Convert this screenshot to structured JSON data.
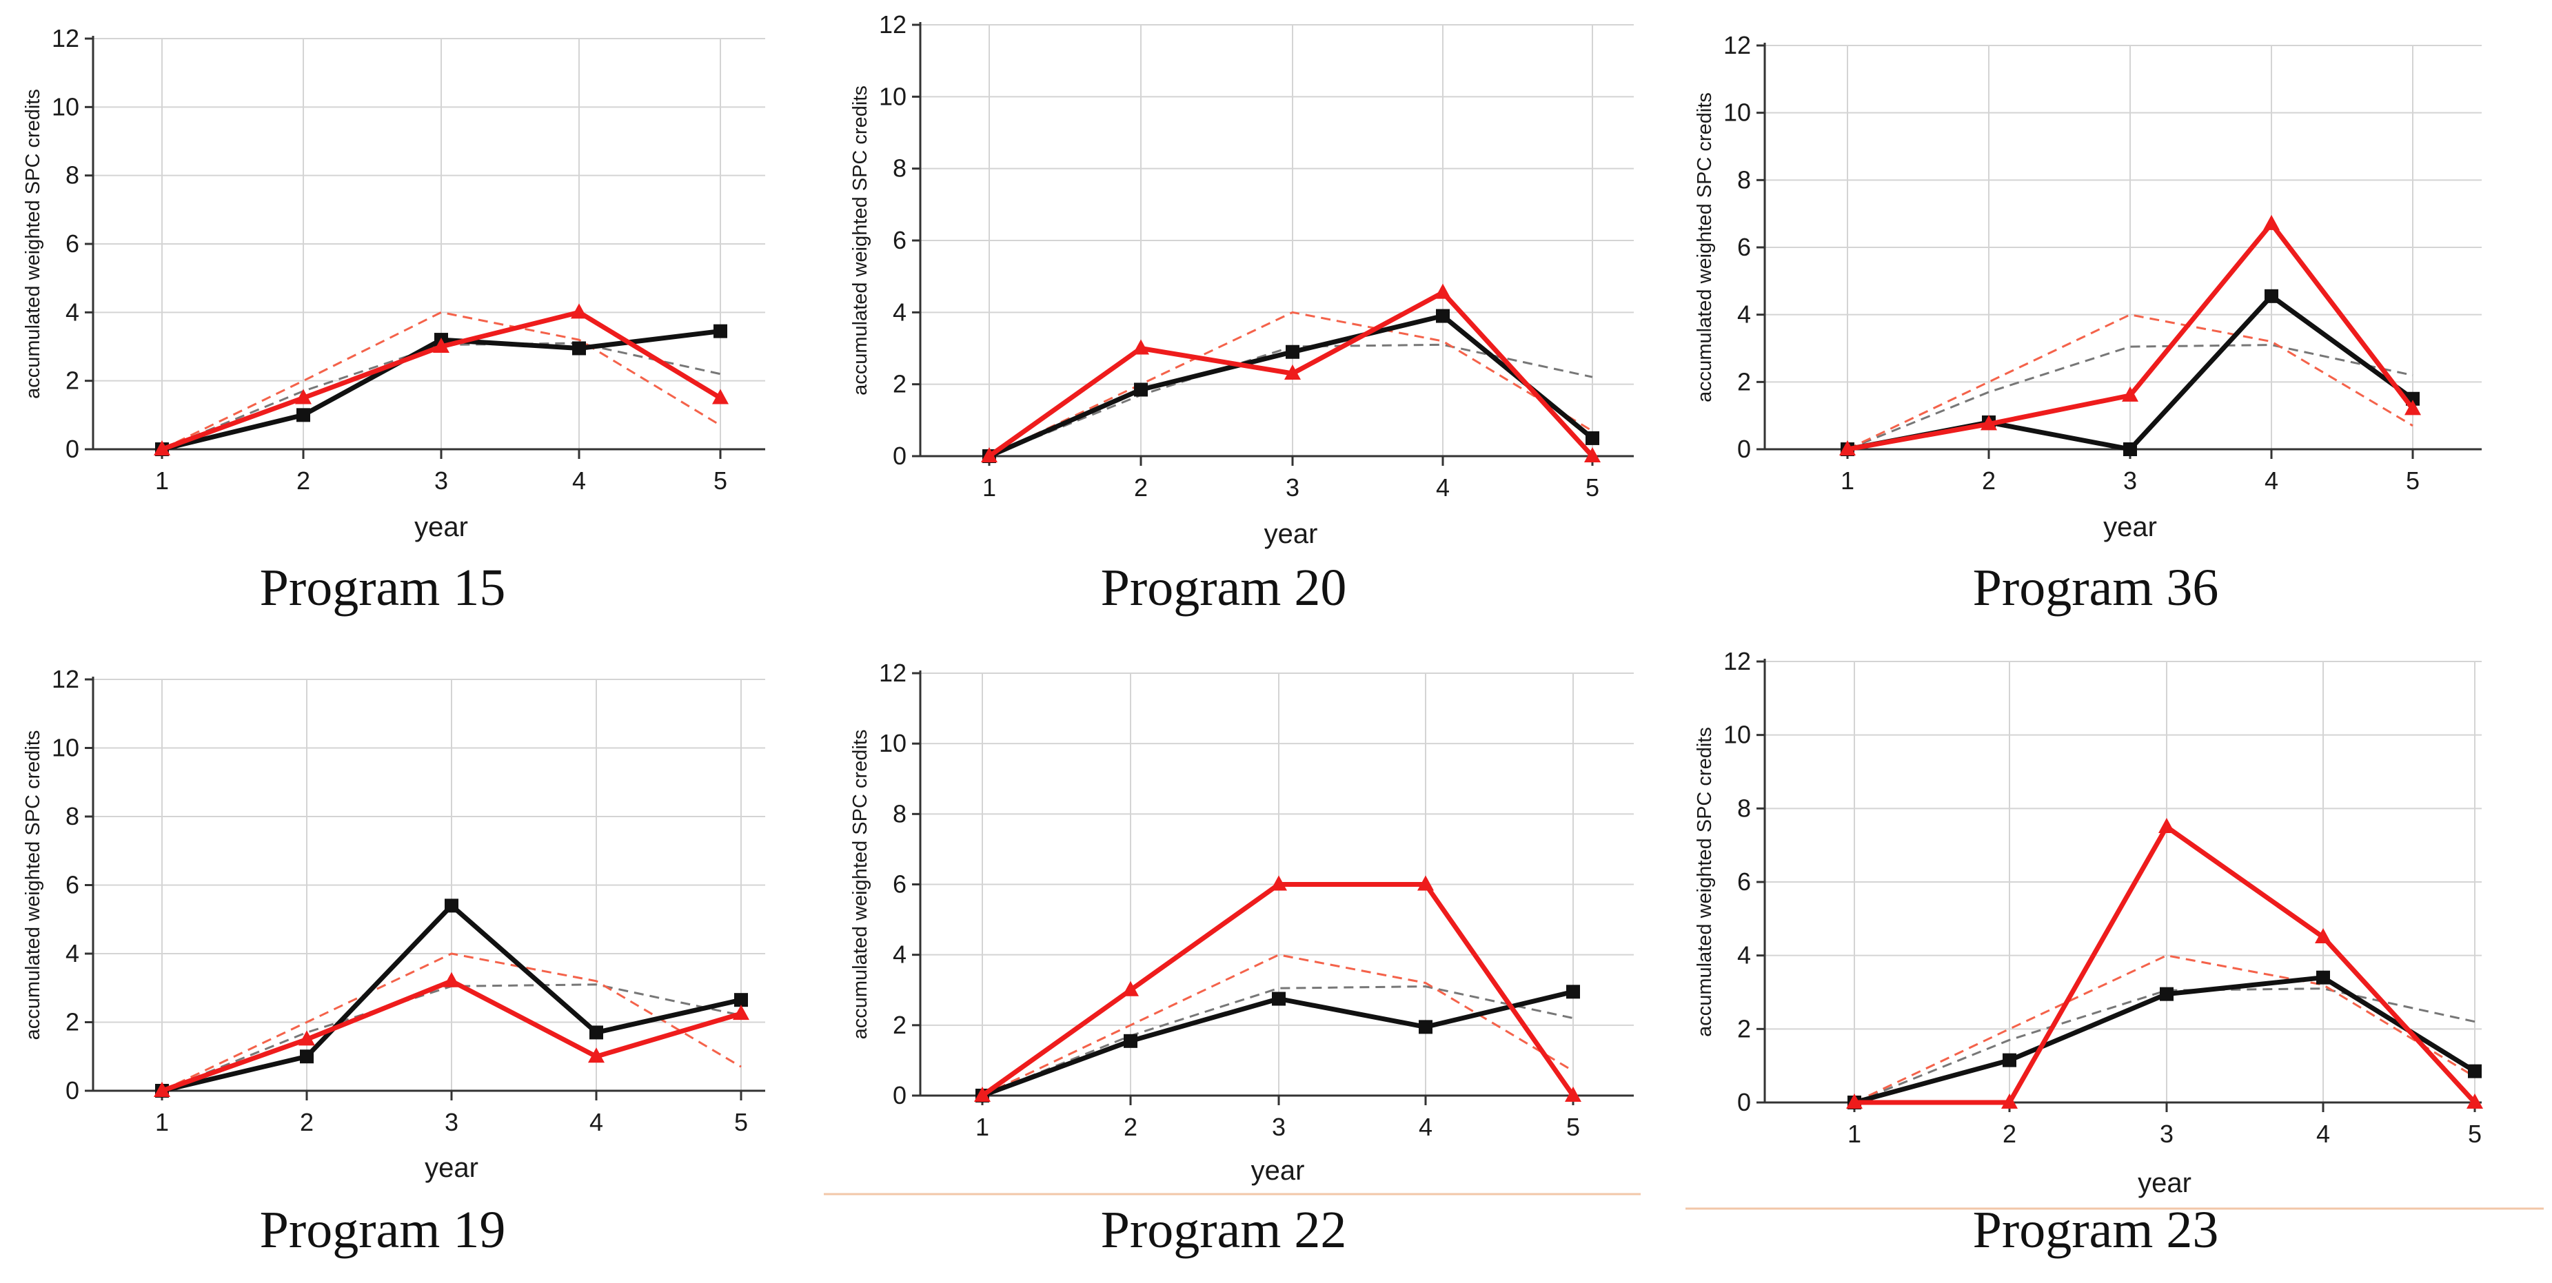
{
  "colors": {
    "series_black": "#111111",
    "series_red": "#ee1c1c",
    "ref_gray": "#777777",
    "ref_red": "#f4624a",
    "divider": "#f2c7a8"
  },
  "chart_data": [
    {
      "type": "line",
      "title": "Program 15",
      "xlabel": "year",
      "ylabel": "accumulated weighted SPC credits",
      "x": [
        1,
        2,
        3,
        4,
        5
      ],
      "ylim": [
        0,
        12
      ],
      "yticks": [
        0,
        2,
        4,
        6,
        8,
        10,
        12
      ],
      "series": [
        {
          "name": "reference-gray-dashed",
          "style": "dashed",
          "color": "#777777",
          "values": [
            0,
            1.7,
            3.05,
            3.1,
            2.2
          ]
        },
        {
          "name": "reference-red-dashed",
          "style": "dashed",
          "color": "#f4624a",
          "values": [
            0,
            2.0,
            4.0,
            3.2,
            0.7
          ]
        },
        {
          "name": "black-squares",
          "style": "solid",
          "marker": "square",
          "color": "#111111",
          "values": [
            0,
            1.0,
            3.2,
            2.95,
            3.45
          ]
        },
        {
          "name": "red-triangles",
          "style": "solid",
          "marker": "triangle",
          "color": "#ee1c1c",
          "values": [
            0,
            1.5,
            3.0,
            4.0,
            1.5
          ]
        }
      ]
    },
    {
      "type": "line",
      "title": "Program 20",
      "xlabel": "year",
      "ylabel": "accumulated weighted SPC credits",
      "x": [
        1,
        2,
        3,
        4,
        5
      ],
      "ylim": [
        0,
        12
      ],
      "yticks": [
        0,
        2,
        4,
        6,
        8,
        10,
        12
      ],
      "series": [
        {
          "name": "reference-gray-dashed",
          "style": "dashed",
          "color": "#777777",
          "values": [
            0,
            1.7,
            3.05,
            3.1,
            2.2
          ]
        },
        {
          "name": "reference-red-dashed",
          "style": "dashed",
          "color": "#f4624a",
          "values": [
            0,
            2.0,
            4.0,
            3.2,
            0.7
          ]
        },
        {
          "name": "black-squares",
          "style": "solid",
          "marker": "square",
          "color": "#111111",
          "values": [
            0,
            1.85,
            2.9,
            3.9,
            0.5
          ]
        },
        {
          "name": "red-triangles",
          "style": "solid",
          "marker": "triangle",
          "color": "#ee1c1c",
          "values": [
            0,
            3.0,
            2.3,
            4.55,
            0
          ]
        }
      ]
    },
    {
      "type": "line",
      "title": "Program 36",
      "xlabel": "year",
      "ylabel": "accumulated weighted SPC credits",
      "x": [
        1,
        2,
        3,
        4,
        5
      ],
      "ylim": [
        0,
        12
      ],
      "yticks": [
        0,
        2,
        4,
        6,
        8,
        10,
        12
      ],
      "series": [
        {
          "name": "reference-gray-dashed",
          "style": "dashed",
          "color": "#777777",
          "values": [
            0,
            1.7,
            3.05,
            3.1,
            2.2
          ]
        },
        {
          "name": "reference-red-dashed",
          "style": "dashed",
          "color": "#f4624a",
          "values": [
            0,
            2.0,
            4.0,
            3.2,
            0.7
          ]
        },
        {
          "name": "black-squares",
          "style": "solid",
          "marker": "square",
          "color": "#111111",
          "values": [
            0,
            0.8,
            0,
            4.55,
            1.5
          ]
        },
        {
          "name": "red-triangles",
          "style": "solid",
          "marker": "triangle",
          "color": "#ee1c1c",
          "values": [
            0,
            0.75,
            1.6,
            6.7,
            1.2
          ]
        }
      ]
    },
    {
      "type": "line",
      "title": "Program 19",
      "xlabel": "year",
      "ylabel": "accumulated weighted SPC credits",
      "x": [
        1,
        2,
        3,
        4,
        5
      ],
      "ylim": [
        0,
        12
      ],
      "yticks": [
        0,
        2,
        4,
        6,
        8,
        10,
        12
      ],
      "series": [
        {
          "name": "reference-gray-dashed",
          "style": "dashed",
          "color": "#777777",
          "values": [
            0,
            1.7,
            3.05,
            3.1,
            2.2
          ]
        },
        {
          "name": "reference-red-dashed",
          "style": "dashed",
          "color": "#f4624a",
          "values": [
            0,
            2.0,
            4.0,
            3.2,
            0.7
          ]
        },
        {
          "name": "black-squares",
          "style": "solid",
          "marker": "square",
          "color": "#111111",
          "values": [
            0,
            1.0,
            5.4,
            1.7,
            2.65
          ]
        },
        {
          "name": "red-triangles",
          "style": "solid",
          "marker": "triangle",
          "color": "#ee1c1c",
          "values": [
            0,
            1.5,
            3.2,
            1.0,
            2.25
          ]
        }
      ]
    },
    {
      "type": "line",
      "title": "Program 22",
      "xlabel": "year",
      "ylabel": "accumulated weighted SPC credits",
      "x": [
        1,
        2,
        3,
        4,
        5
      ],
      "ylim": [
        0,
        12
      ],
      "yticks": [
        0,
        2,
        4,
        6,
        8,
        10,
        12
      ],
      "series": [
        {
          "name": "reference-gray-dashed",
          "style": "dashed",
          "color": "#777777",
          "values": [
            0,
            1.7,
            3.05,
            3.1,
            2.2
          ]
        },
        {
          "name": "reference-red-dashed",
          "style": "dashed",
          "color": "#f4624a",
          "values": [
            0,
            2.0,
            4.0,
            3.2,
            0.7
          ]
        },
        {
          "name": "black-squares",
          "style": "solid",
          "marker": "square",
          "color": "#111111",
          "values": [
            0,
            1.55,
            2.75,
            1.95,
            2.95
          ]
        },
        {
          "name": "red-triangles",
          "style": "solid",
          "marker": "triangle",
          "color": "#ee1c1c",
          "values": [
            0,
            3.0,
            6.0,
            6.0,
            0
          ]
        }
      ]
    },
    {
      "type": "line",
      "title": "Program 23",
      "xlabel": "year",
      "ylabel": "accumulated weighted SPC credits",
      "x": [
        1,
        2,
        3,
        4,
        5
      ],
      "ylim": [
        0,
        12
      ],
      "yticks": [
        0,
        2,
        4,
        6,
        8,
        10,
        12
      ],
      "series": [
        {
          "name": "reference-gray-dashed",
          "style": "dashed",
          "color": "#777777",
          "values": [
            0,
            1.7,
            3.05,
            3.1,
            2.2
          ]
        },
        {
          "name": "reference-red-dashed",
          "style": "dashed",
          "color": "#f4624a",
          "values": [
            0,
            2.0,
            4.0,
            3.2,
            0.7
          ]
        },
        {
          "name": "black-squares",
          "style": "solid",
          "marker": "square",
          "color": "#111111",
          "values": [
            0,
            1.15,
            2.95,
            3.4,
            0.85
          ]
        },
        {
          "name": "red-triangles",
          "style": "solid",
          "marker": "triangle",
          "color": "#ee1c1c",
          "values": [
            0,
            0,
            7.5,
            4.5,
            0
          ]
        }
      ]
    }
  ]
}
